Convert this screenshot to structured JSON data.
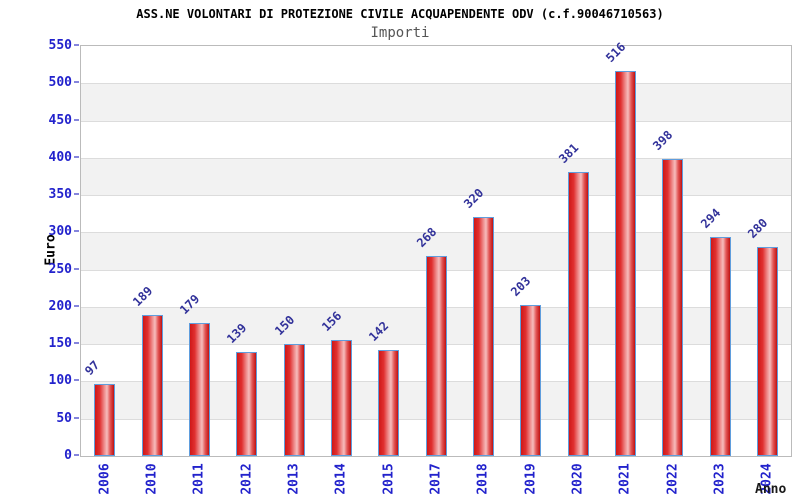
{
  "title": "ASS.NE VOLONTARI DI PROTEZIONE CIVILE ACQUAPENDENTE ODV (c.f.90046710563)",
  "subtitle": "Importi",
  "chart_data": {
    "type": "bar",
    "title": "ASS.NE VOLONTARI DI PROTEZIONE CIVILE ACQUAPENDENTE ODV (c.f.90046710563)",
    "subtitle": "Importi",
    "xlabel": "Anno",
    "ylabel": "Euro",
    "categories": [
      "2006",
      "2010",
      "2011",
      "2012",
      "2013",
      "2014",
      "2015",
      "2017",
      "2018",
      "2019",
      "2020",
      "2021",
      "2022",
      "2023",
      "2024"
    ],
    "values": [
      97,
      189,
      179,
      139,
      150,
      156,
      142,
      268,
      320,
      203,
      381,
      516,
      398,
      294,
      280
    ],
    "ylim": [
      0,
      550
    ],
    "yticks": [
      0,
      50,
      100,
      150,
      200,
      250,
      300,
      350,
      400,
      450,
      500,
      550
    ],
    "grid": true,
    "legend": "none",
    "alternating_bands": true,
    "colors": {
      "bar_dark": "#c01212",
      "bar_light": "#f6bcbc",
      "bar_border": "#5f9ddd",
      "axis_tick_label": "#2222cc",
      "value_label": "#32329a",
      "band_gray": "#f2f2f2",
      "gridline": "#dcdcdc",
      "plot_border": "#bbbbbb",
      "subtitle": "#555555",
      "title": "#000000"
    }
  }
}
